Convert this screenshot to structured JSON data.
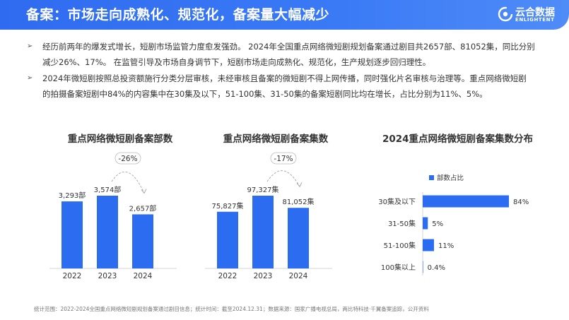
{
  "header": {
    "title": "备案：市场走向成熟化、规范化，备案量大幅减少",
    "logo_name": "云合数据",
    "logo_en": "ENLIGHTENT"
  },
  "bullets": [
    {
      "line1": "经历前两年的爆发式增长，短剧市场监管力度愈发强劲。 2024年全国重点网络微短剧规划备案通过剧目共2657部、81052集，同比分别",
      "line2": "减少26%、17%。 在监管引导及市场自身调节下，短剧市场走向成熟化、规范化，生产规划逐步回归理性。"
    },
    {
      "line1": "2024年微短剧按照总投资额施行分类分层审核，未经审核且备案的微短剧不得上网传播，同时强化片名审核与治理等。重点网络微短剧",
      "line2": "的拍摄备案短剧中84%的内容集中在30集及以下，51-100集、31-50集的备案短剧同比均在增长，占比分别为11%、5%。"
    }
  ],
  "colors": {
    "accent": "#2b6cf0",
    "header": "#3a7af5"
  },
  "chart_data": [
    {
      "type": "bar",
      "title": "重点网络微短剧备案部数",
      "categories": [
        "2022",
        "2023",
        "2024"
      ],
      "values": [
        3293,
        3574,
        2657
      ],
      "value_labels": [
        "3,293部",
        "3,574部",
        "2,657部"
      ],
      "annotation": "-26%",
      "ylim": [
        0,
        4200
      ]
    },
    {
      "type": "bar",
      "title": "重点网络微短剧备案集数",
      "categories": [
        "2022",
        "2023",
        "2024"
      ],
      "values": [
        75827,
        97327,
        81052
      ],
      "value_labels": [
        "75,827集",
        "97,327集",
        "81,052集"
      ],
      "annotation": "-17%",
      "ylim": [
        0,
        115000
      ]
    },
    {
      "type": "bar",
      "orientation": "horizontal",
      "title": "2024重点网络微短剧备案集数分布",
      "categories": [
        "30集及以下",
        "31-50集",
        "51-100集",
        "100集以上"
      ],
      "values": [
        84,
        5,
        11,
        0.4
      ],
      "value_labels": [
        "84%",
        "5%",
        "11%",
        "0.4%"
      ],
      "legend": "部数占比",
      "legend_position": "top-left",
      "xlim": [
        0,
        100
      ]
    }
  ],
  "footer": "统计范围：2022-2024全国重点网络微短剧规划备案通过剧目信息；统计时间：截至2024.12.31；数据来源：国家广播电视总局，两比特科技·千翼备案追踪，公开资料"
}
